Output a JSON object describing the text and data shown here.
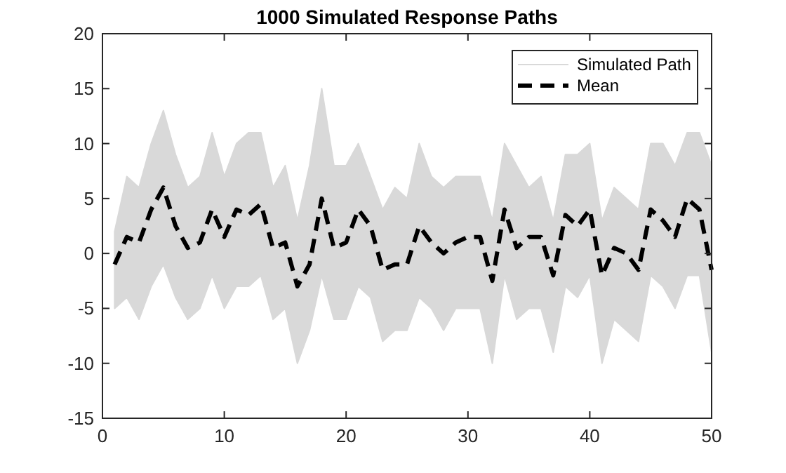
{
  "chart_data": {
    "type": "line",
    "title": "1000 Simulated Response Paths",
    "x": [
      1,
      2,
      3,
      4,
      5,
      6,
      7,
      8,
      9,
      10,
      11,
      12,
      13,
      14,
      15,
      16,
      17,
      18,
      19,
      20,
      21,
      22,
      23,
      24,
      25,
      26,
      27,
      28,
      29,
      30,
      31,
      32,
      33,
      34,
      35,
      36,
      37,
      38,
      39,
      40,
      41,
      42,
      43,
      44,
      45,
      46,
      47,
      48,
      49,
      50
    ],
    "series": [
      {
        "name": "Simulated Path",
        "type": "area",
        "color": "#d9d9d9",
        "values": [
          null,
          null,
          null,
          null,
          null,
          null,
          null,
          null,
          null,
          null,
          null,
          null,
          null,
          null,
          null,
          null,
          null,
          null,
          null,
          null,
          null,
          null,
          null,
          null,
          null,
          null,
          null,
          null,
          null,
          null,
          null,
          null,
          null,
          null,
          null,
          null,
          null,
          null,
          null,
          null,
          null,
          null,
          null,
          null,
          null,
          null,
          null,
          null,
          null,
          null
        ],
        "upper": [
          2,
          7,
          6,
          10,
          13,
          9,
          6,
          7,
          11,
          7,
          10,
          11,
          11,
          6,
          8,
          3,
          8,
          15,
          8,
          8,
          10,
          7,
          4,
          6,
          5,
          10,
          7,
          6,
          7,
          7,
          7,
          3,
          10,
          8,
          6,
          7,
          3,
          9,
          9,
          10,
          3,
          6,
          5,
          4,
          10,
          10,
          8,
          11,
          11,
          8
        ],
        "lower": [
          -5,
          -4,
          -6,
          -3,
          -1,
          -4,
          -6,
          -5,
          -2,
          -5,
          -3,
          -3,
          -2,
          -6,
          -5,
          -10,
          -7,
          -2,
          -6,
          -6,
          -3,
          -4,
          -8,
          -7,
          -7,
          -4,
          -5,
          -7,
          -5,
          -5,
          -5,
          -10,
          -2,
          -6,
          -5,
          -5,
          -9,
          -3,
          -4,
          -2,
          -10,
          -6,
          -7,
          -8,
          -2,
          -3,
          -5,
          -2,
          -2,
          -9
        ]
      },
      {
        "name": "Mean",
        "color": "#000000",
        "line_style": "dashed",
        "values": [
          -1,
          1.5,
          1,
          4,
          6,
          2.5,
          0.5,
          1,
          4,
          1.5,
          4,
          3.5,
          4.5,
          0.5,
          1,
          -3,
          -1,
          5,
          0.5,
          1,
          4,
          2.5,
          -1.5,
          -1,
          -1,
          2.5,
          1,
          0,
          1,
          1.5,
          1.5,
          -2.5,
          4,
          0.5,
          1.5,
          1.5,
          -2,
          3.5,
          2.5,
          4,
          -2,
          0.5,
          0,
          -1.5,
          4,
          3,
          1.5,
          5,
          4,
          -1.5
        ]
      }
    ],
    "xlim": [
      0,
      50
    ],
    "xticks": [
      0,
      10,
      20,
      30,
      40,
      50
    ],
    "ylim": [
      -15,
      20
    ],
    "yticks": [
      -15,
      -10,
      -5,
      0,
      5,
      10,
      15,
      20
    ],
    "grid": false,
    "legend": "top right"
  }
}
